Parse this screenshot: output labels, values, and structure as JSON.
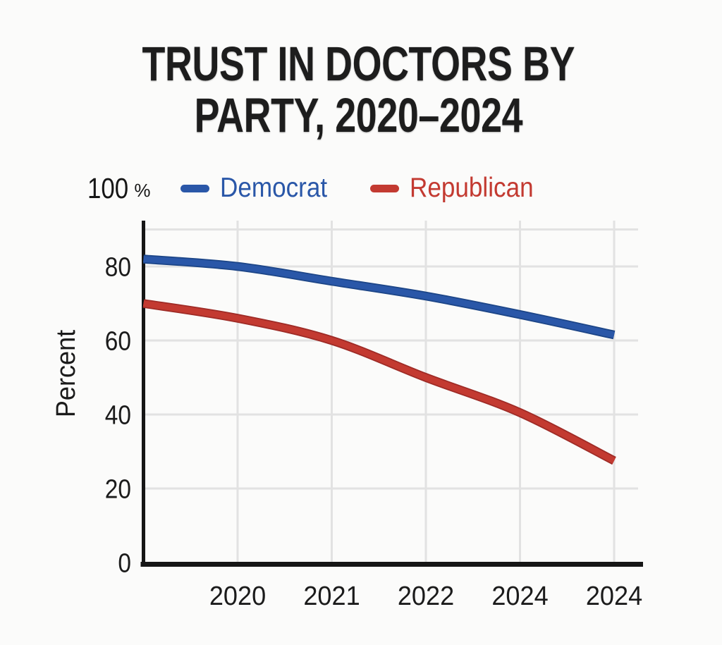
{
  "title": {
    "line1": "TRUST IN DOCTORS BY",
    "line2": "PARTY, 2020–2024"
  },
  "legend": {
    "top_axis_value": "100",
    "top_axis_unit": "%"
  },
  "y_axis": {
    "label": "Percent",
    "ticks": [
      "80",
      "60",
      "40",
      "20",
      "0"
    ]
  },
  "x_axis": {
    "ticks": [
      "2020",
      "2021",
      "2022",
      "2024",
      "2024"
    ]
  },
  "colors": {
    "democrat_blue": "#2a57a8",
    "democrat_blue_edge": "#1c4587",
    "republican_red": "#c33a31",
    "republican_red_edge": "#9e2b26",
    "gridline_gray": "#e2e2e2",
    "axis_black": "#161616",
    "background": "#fbfbfa",
    "text_black": "#1b1b1b"
  },
  "chart_data": {
    "type": "line",
    "title": "TRUST IN DOCTORS BY PARTY, 2020–2024",
    "xlabel": "",
    "ylabel": "Percent",
    "ylim": [
      0,
      100
    ],
    "yticks": [
      0,
      20,
      40,
      60,
      80,
      100
    ],
    "grid": true,
    "legend_position": "top",
    "x_tick_labels": [
      "2020",
      "2021",
      "2022",
      "2024",
      "2024"
    ],
    "note": "Each series has 6 evenly spaced points; the first point sits on the y-axis, one step left of the first labeled tick (2020). X labels as printed include a duplicated 2024.",
    "series": [
      {
        "name": "Democrat",
        "color": "#2a57a8",
        "edge_color": "#1c4587",
        "values": [
          82,
          80,
          76,
          72,
          67,
          61.5
        ]
      },
      {
        "name": "Republican",
        "color": "#c33a31",
        "edge_color": "#9e2b26",
        "values": [
          70,
          66,
          60,
          50,
          40.5,
          27.5
        ]
      }
    ]
  }
}
